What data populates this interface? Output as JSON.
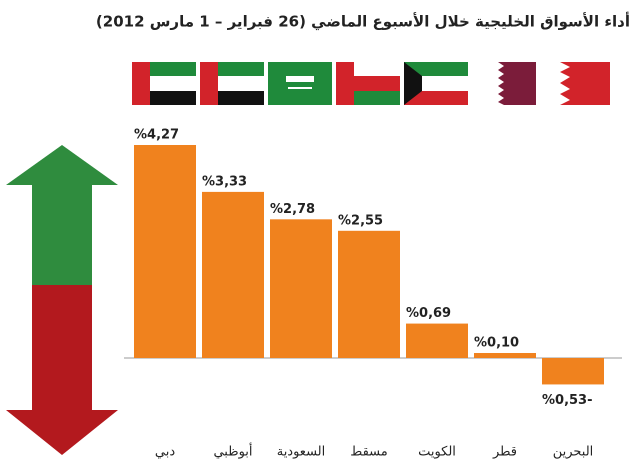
{
  "chart_data": {
    "type": "bar",
    "title": "أداء الأسواق الخليجية خلال الأسبوع الماضي (26 فبراير – 1 مارس 2012)",
    "categories": [
      "دبي",
      "أبوظبي",
      "السعودية",
      "مسقط",
      "الكويت",
      "قطر",
      "البحرين"
    ],
    "values": [
      4.27,
      3.33,
      2.78,
      2.55,
      0.69,
      0.1,
      -0.53
    ],
    "value_labels": [
      "%4,27",
      "%3,33",
      "%2,78",
      "%2,55",
      "%0,69",
      "%0,10",
      "%0,53-"
    ],
    "color": "#f0821e"
  }
}
